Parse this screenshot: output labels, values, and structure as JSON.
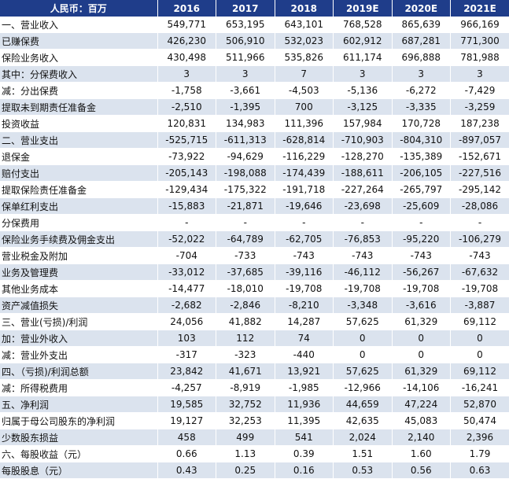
{
  "header": {
    "label": "人民币：百万",
    "years": [
      "2016",
      "2017",
      "2018",
      "2019E",
      "2020E",
      "2021E"
    ]
  },
  "rows": [
    {
      "label": "一、营业收入",
      "values": [
        "549,771",
        "653,195",
        "643,101",
        "768,528",
        "865,639",
        "966,169"
      ]
    },
    {
      "label": " 已赚保费",
      "values": [
        "426,230",
        "506,910",
        "532,023",
        "602,912",
        "687,281",
        "771,300"
      ]
    },
    {
      "label": "保险业务收入",
      "values": [
        "430,498",
        "511,966",
        "535,826",
        "611,174",
        "696,888",
        "781,988"
      ]
    },
    {
      "label": "其中：分保费收入",
      "values": [
        "3",
        "3",
        "7",
        "3",
        "3",
        "3"
      ]
    },
    {
      "label": "减：分出保费",
      "values": [
        "-1,758",
        "-3,661",
        "-4,503",
        "-5,136",
        "-6,272",
        "-7,429"
      ]
    },
    {
      "label": "提取未到期责任准备金",
      "values": [
        "-2,510",
        "-1,395",
        "700",
        "-3,125",
        "-3,335",
        "-3,259"
      ]
    },
    {
      "label": "投资收益",
      "values": [
        "120,831",
        "134,983",
        "111,396",
        "157,984",
        "170,728",
        "187,238"
      ]
    },
    {
      "label": "二、营业支出",
      "values": [
        "-525,715",
        "-611,313",
        "-628,814",
        "-710,903",
        "-804,310",
        "-897,057"
      ]
    },
    {
      "label": "退保金",
      "values": [
        "-73,922",
        "-94,629",
        "-116,229",
        "-128,270",
        "-135,389",
        "-152,671"
      ]
    },
    {
      "label": "赔付支出",
      "values": [
        "-205,143",
        "-198,088",
        "-174,439",
        "-188,611",
        "-206,105",
        "-227,516"
      ]
    },
    {
      "label": "提取保险责任准备金",
      "values": [
        "-129,434",
        "-175,322",
        "-191,718",
        "-227,264",
        "-265,797",
        "-295,142"
      ]
    },
    {
      "label": "保单红利支出",
      "values": [
        "-15,883",
        "-21,871",
        "-19,646",
        "-23,698",
        "-25,609",
        "-28,086"
      ]
    },
    {
      "label": "分保费用",
      "values": [
        "-",
        "-",
        "-",
        "-",
        "-",
        "-"
      ]
    },
    {
      "label": "保险业务手续费及佣金支出",
      "values": [
        "-52,022",
        "-64,789",
        "-62,705",
        "-76,853",
        "-95,220",
        "-106,279"
      ]
    },
    {
      "label": "营业税金及附加",
      "values": [
        "-704",
        "-733",
        "-743",
        "-743",
        "-743",
        "-743"
      ]
    },
    {
      "label": "业务及管理费",
      "values": [
        "-33,012",
        "-37,685",
        "-39,116",
        "-46,112",
        "-56,267",
        "-67,632"
      ]
    },
    {
      "label": "其他业务成本",
      "values": [
        "-14,477",
        "-18,010",
        "-19,708",
        "-19,708",
        "-19,708",
        "-19,708"
      ]
    },
    {
      "label": "资产减值损失",
      "values": [
        "-2,682",
        "-2,846",
        "-8,210",
        "-3,348",
        "-3,616",
        "-3,887"
      ]
    },
    {
      "label": "三、营业(亏损)/利润",
      "values": [
        "24,056",
        "41,882",
        "14,287",
        "57,625",
        "61,329",
        "69,112"
      ]
    },
    {
      "label": "加：营业外收入",
      "values": [
        "103",
        "112",
        "74",
        "0",
        "0",
        "0"
      ]
    },
    {
      "label": "减：营业外支出",
      "values": [
        "-317",
        "-323",
        "-440",
        "0",
        "0",
        "0"
      ]
    },
    {
      "label": "四、（亏损)/利润总额",
      "values": [
        "23,842",
        "41,671",
        "13,921",
        "57,625",
        "61,329",
        "69,112"
      ]
    },
    {
      "label": "减：所得税费用",
      "values": [
        "-4,257",
        "-8,919",
        "-1,985",
        "-12,966",
        "-14,106",
        "-16,241"
      ]
    },
    {
      "label": "五、净利润",
      "values": [
        "19,585",
        "32,752",
        "11,936",
        "44,659",
        "47,224",
        "52,870"
      ]
    },
    {
      "label": "归属于母公司股东的净利润",
      "values": [
        "19,127",
        "32,253",
        "11,395",
        "42,635",
        "45,083",
        "50,474"
      ]
    },
    {
      "label": "少数股东损益",
      "values": [
        "458",
        "499",
        "541",
        "2,024",
        "2,140",
        "2,396"
      ]
    },
    {
      "label": "六、每股收益（元）",
      "values": [
        "0.66",
        "1.13",
        "0.39",
        "1.51",
        "1.60",
        "1.79"
      ]
    },
    {
      "label": "每股股息（元）",
      "values": [
        "0.43",
        "0.25",
        "0.16",
        "0.53",
        "0.56",
        "0.63"
      ]
    }
  ],
  "colors": {
    "header_bg": "#1f3d8a",
    "header_text": "#ffffff",
    "stripe": "#dbe3ee"
  }
}
